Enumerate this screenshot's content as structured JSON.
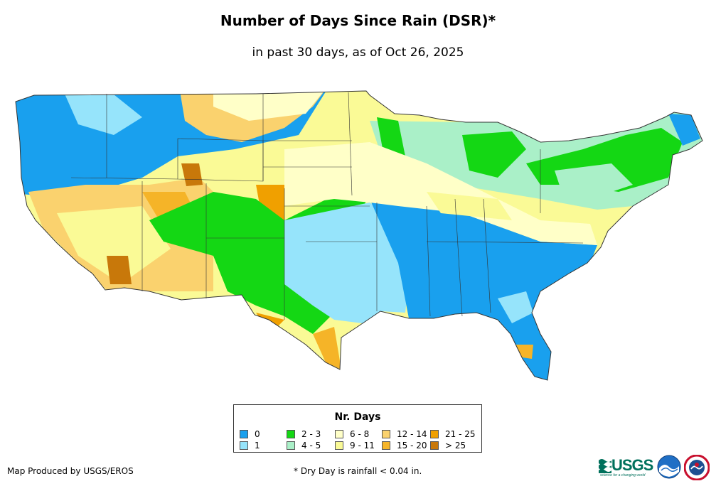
{
  "title": "Number of Days Since Rain (DSR)*",
  "subtitle": "in past 30 days, as of Oct 26, 2025",
  "legend": {
    "title": "Nr. Days",
    "items": [
      {
        "label": "0",
        "color": "#19a0ee"
      },
      {
        "label": "1",
        "color": "#96e4fb"
      },
      {
        "label": "2 - 3",
        "color": "#14d714"
      },
      {
        "label": "4 - 5",
        "color": "#aaf0c8"
      },
      {
        "label": "6 - 8",
        "color": "#ffffc8"
      },
      {
        "label": "9 - 11",
        "color": "#fafa96"
      },
      {
        "label": "12 - 14",
        "color": "#fad26e"
      },
      {
        "label": "15 - 20",
        "color": "#f5b428"
      },
      {
        "label": "21 - 25",
        "color": "#f0a000"
      },
      {
        "label": "> 25",
        "color": "#c8780a"
      }
    ]
  },
  "footer": {
    "credit": "Map Produced by USGS/EROS",
    "note": "* Dry Day is rainfall < 0.04 in."
  },
  "logos": {
    "usgs": "USGS",
    "usgs_tagline": "science for a changing world",
    "noaa": "noaa-logo",
    "nws": "nws-logo"
  }
}
